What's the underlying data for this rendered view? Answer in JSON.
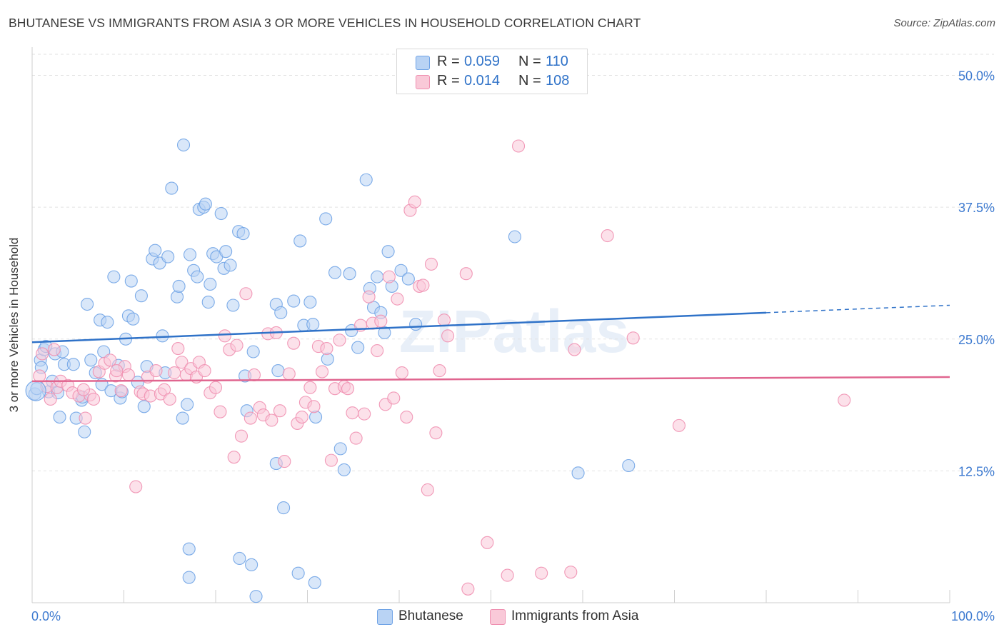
{
  "title": "BHUTANESE VS IMMIGRANTS FROM ASIA 3 OR MORE VEHICLES IN HOUSEHOLD CORRELATION CHART",
  "source": "Source: ZipAtlas.com",
  "watermark": "ZIPatlas",
  "legend": {
    "rows": [
      {
        "r_label": "R =",
        "r_value": "0.059",
        "n_label": "N =",
        "n_value": "110",
        "color": "#6fa3e6",
        "fill": "#b9d3f4"
      },
      {
        "r_label": "R =",
        "r_value": "0.014",
        "n_label": "N =",
        "n_value": "108",
        "color": "#ef8fb0",
        "fill": "#f9c9d8"
      }
    ]
  },
  "bottom_legend": [
    {
      "label": "Bhutanese",
      "color": "#6fa3e6",
      "fill": "#b9d3f4"
    },
    {
      "label": "Immigrants from Asia",
      "color": "#ef8fb0",
      "fill": "#f9c9d8"
    }
  ],
  "chart_data": {
    "type": "scatter",
    "title": "BHUTANESE VS IMMIGRANTS FROM ASIA 3 OR MORE VEHICLES IN HOUSEHOLD CORRELATION CHART",
    "xlabel": "",
    "ylabel": "3 or more Vehicles in Household",
    "xlim": [
      0,
      100
    ],
    "ylim": [
      0,
      52
    ],
    "x_tick_labels": [
      "0.0%",
      "100.0%"
    ],
    "y_ticks": [
      12.5,
      25.0,
      37.5,
      50.0
    ],
    "y_tick_labels": [
      "12.5%",
      "25.0%",
      "37.5%",
      "50.0%"
    ],
    "grid": true,
    "series": [
      {
        "name": "Bhutanese",
        "color": "#6fa3e6",
        "fill": "#b9d3f4",
        "trend": {
          "x0": 0,
          "y0": 24.7,
          "x1": 80,
          "y1": 27.5,
          "dashed_to_x": 100,
          "dashed_to_y": 28.2,
          "color": "#2f72c8"
        },
        "points": [
          [
            0.3,
            19.8
          ],
          [
            0.5,
            20.3
          ],
          [
            0.9,
            23.0
          ],
          [
            1.0,
            22.3
          ],
          [
            1.3,
            24.0
          ],
          [
            1.5,
            24.3
          ],
          [
            1.8,
            20.0
          ],
          [
            2.2,
            21.0
          ],
          [
            2.5,
            23.6
          ],
          [
            2.8,
            19.9
          ],
          [
            3.0,
            17.6
          ],
          [
            3.3,
            23.8
          ],
          [
            3.5,
            22.6
          ],
          [
            4.5,
            22.6
          ],
          [
            4.8,
            17.5
          ],
          [
            5.4,
            19.2
          ],
          [
            5.7,
            16.2
          ],
          [
            6.0,
            28.3
          ],
          [
            6.4,
            23.0
          ],
          [
            6.9,
            21.8
          ],
          [
            7.4,
            26.8
          ],
          [
            7.6,
            20.7
          ],
          [
            7.8,
            23.8
          ],
          [
            8.2,
            26.6
          ],
          [
            8.6,
            20.1
          ],
          [
            8.9,
            30.9
          ],
          [
            9.4,
            22.5
          ],
          [
            9.6,
            19.4
          ],
          [
            9.8,
            20.0
          ],
          [
            10.2,
            25.0
          ],
          [
            10.5,
            27.2
          ],
          [
            10.8,
            30.5
          ],
          [
            11.0,
            26.9
          ],
          [
            11.5,
            20.9
          ],
          [
            11.9,
            29.1
          ],
          [
            12.2,
            18.6
          ],
          [
            12.5,
            22.4
          ],
          [
            13.1,
            32.6
          ],
          [
            13.4,
            33.4
          ],
          [
            13.9,
            32.2
          ],
          [
            14.2,
            25.3
          ],
          [
            14.5,
            21.8
          ],
          [
            14.8,
            32.8
          ],
          [
            15.2,
            39.3
          ],
          [
            15.8,
            29.0
          ],
          [
            16.0,
            30.0
          ],
          [
            16.4,
            17.5
          ],
          [
            16.5,
            43.4
          ],
          [
            16.9,
            18.8
          ],
          [
            17.2,
            33.0
          ],
          [
            17.6,
            31.5
          ],
          [
            18.0,
            30.9
          ],
          [
            18.2,
            37.3
          ],
          [
            18.7,
            37.5
          ],
          [
            18.9,
            37.8
          ],
          [
            19.2,
            28.5
          ],
          [
            19.4,
            30.2
          ],
          [
            19.7,
            33.1
          ],
          [
            20.1,
            32.8
          ],
          [
            20.6,
            36.9
          ],
          [
            20.9,
            31.7
          ],
          [
            21.1,
            33.3
          ],
          [
            21.6,
            32.0
          ],
          [
            21.9,
            28.2
          ],
          [
            22.5,
            35.2
          ],
          [
            23.0,
            35.0
          ],
          [
            23.2,
            21.5
          ],
          [
            23.4,
            18.2
          ],
          [
            24.1,
            23.8
          ],
          [
            26.6,
            13.2
          ],
          [
            26.6,
            28.3
          ],
          [
            26.8,
            22.0
          ],
          [
            27.1,
            27.5
          ],
          [
            27.4,
            9.0
          ],
          [
            28.5,
            28.6
          ],
          [
            29.2,
            34.3
          ],
          [
            29.6,
            26.3
          ],
          [
            30.3,
            28.5
          ],
          [
            30.6,
            26.4
          ],
          [
            30.9,
            17.6
          ],
          [
            32.0,
            36.4
          ],
          [
            32.2,
            23.1
          ],
          [
            33.0,
            31.3
          ],
          [
            33.6,
            14.6
          ],
          [
            34.0,
            12.6
          ],
          [
            34.6,
            31.2
          ],
          [
            34.8,
            25.8
          ],
          [
            35.5,
            24.2
          ],
          [
            36.4,
            40.1
          ],
          [
            36.8,
            29.8
          ],
          [
            37.2,
            28.0
          ],
          [
            37.6,
            30.9
          ],
          [
            38.0,
            27.5
          ],
          [
            38.4,
            25.6
          ],
          [
            38.8,
            33.3
          ],
          [
            39.2,
            30.0
          ],
          [
            40.2,
            31.5
          ],
          [
            41.0,
            30.7
          ],
          [
            41.8,
            26.4
          ],
          [
            52.6,
            34.7
          ],
          [
            59.5,
            12.3
          ],
          [
            65.0,
            13.0
          ],
          [
            17.1,
            5.1
          ],
          [
            23.9,
            3.6
          ],
          [
            24.4,
            0.6
          ],
          [
            29.0,
            2.8
          ],
          [
            30.8,
            1.9
          ],
          [
            17.1,
            2.4
          ],
          [
            5.5,
            19.5
          ],
          [
            22.6,
            4.2
          ]
        ]
      },
      {
        "name": "Immigrants from Asia",
        "color": "#ef8fb0",
        "fill": "#f9c9d8",
        "trend": {
          "x0": 0,
          "y0": 21.0,
          "x1": 100,
          "y1": 21.4,
          "color": "#e0658f"
        },
        "points": [
          [
            0.8,
            21.5
          ],
          [
            1.1,
            23.6
          ],
          [
            1.6,
            20.5
          ],
          [
            2.0,
            19.3
          ],
          [
            2.7,
            20.4
          ],
          [
            3.1,
            21.0
          ],
          [
            3.9,
            20.6
          ],
          [
            4.4,
            19.9
          ],
          [
            5.1,
            19.6
          ],
          [
            5.8,
            17.5
          ],
          [
            6.3,
            19.7
          ],
          [
            6.7,
            19.3
          ],
          [
            7.3,
            21.9
          ],
          [
            7.9,
            22.7
          ],
          [
            8.5,
            23.0
          ],
          [
            9.1,
            21.5
          ],
          [
            9.7,
            20.1
          ],
          [
            10.1,
            22.4
          ],
          [
            10.5,
            21.6
          ],
          [
            11.3,
            11.0
          ],
          [
            11.8,
            20.0
          ],
          [
            12.1,
            19.8
          ],
          [
            12.6,
            21.4
          ],
          [
            12.9,
            19.6
          ],
          [
            13.5,
            22.0
          ],
          [
            14.0,
            19.8
          ],
          [
            14.4,
            20.2
          ],
          [
            15.0,
            19.3
          ],
          [
            15.5,
            21.8
          ],
          [
            15.9,
            24.1
          ],
          [
            16.3,
            22.8
          ],
          [
            16.8,
            21.6
          ],
          [
            17.3,
            22.2
          ],
          [
            17.9,
            21.4
          ],
          [
            18.2,
            22.8
          ],
          [
            18.8,
            22.0
          ],
          [
            19.4,
            19.9
          ],
          [
            20.0,
            20.4
          ],
          [
            20.5,
            18.1
          ],
          [
            21.0,
            25.3
          ],
          [
            21.5,
            24.0
          ],
          [
            22.0,
            13.8
          ],
          [
            22.3,
            24.4
          ],
          [
            22.8,
            15.8
          ],
          [
            23.3,
            29.3
          ],
          [
            23.8,
            17.5
          ],
          [
            24.2,
            21.6
          ],
          [
            24.8,
            18.5
          ],
          [
            25.2,
            17.8
          ],
          [
            25.7,
            25.5
          ],
          [
            26.1,
            17.3
          ],
          [
            26.6,
            25.6
          ],
          [
            27.0,
            18.2
          ],
          [
            27.5,
            13.4
          ],
          [
            28.0,
            21.7
          ],
          [
            28.5,
            24.6
          ],
          [
            28.9,
            17.0
          ],
          [
            29.4,
            17.6
          ],
          [
            29.8,
            19.0
          ],
          [
            30.3,
            20.4
          ],
          [
            30.7,
            18.6
          ],
          [
            31.2,
            24.3
          ],
          [
            31.6,
            21.9
          ],
          [
            32.1,
            24.1
          ],
          [
            32.6,
            13.5
          ],
          [
            33.0,
            20.3
          ],
          [
            33.5,
            24.9
          ],
          [
            34.0,
            20.5
          ],
          [
            34.4,
            20.3
          ],
          [
            34.9,
            18.0
          ],
          [
            35.3,
            15.6
          ],
          [
            35.8,
            26.3
          ],
          [
            36.2,
            17.9
          ],
          [
            36.7,
            29.0
          ],
          [
            37.1,
            26.5
          ],
          [
            37.6,
            23.9
          ],
          [
            38.0,
            26.7
          ],
          [
            38.5,
            18.8
          ],
          [
            38.9,
            30.9
          ],
          [
            39.4,
            19.4
          ],
          [
            39.8,
            28.8
          ],
          [
            40.3,
            21.8
          ],
          [
            40.8,
            17.6
          ],
          [
            41.2,
            37.2
          ],
          [
            41.7,
            38.0
          ],
          [
            42.2,
            30.0
          ],
          [
            42.6,
            30.1
          ],
          [
            43.1,
            10.7
          ],
          [
            43.5,
            32.1
          ],
          [
            44.0,
            16.1
          ],
          [
            44.4,
            22.0
          ],
          [
            44.9,
            26.8
          ],
          [
            45.3,
            25.3
          ],
          [
            47.3,
            31.2
          ],
          [
            47.5,
            1.3
          ],
          [
            49.6,
            5.7
          ],
          [
            51.8,
            2.6
          ],
          [
            53.0,
            43.3
          ],
          [
            55.5,
            2.8
          ],
          [
            58.7,
            2.9
          ],
          [
            59.1,
            24.0
          ],
          [
            62.7,
            34.8
          ],
          [
            65.5,
            25.1
          ],
          [
            70.5,
            16.8
          ],
          [
            88.5,
            19.2
          ],
          [
            5.6,
            20.2
          ],
          [
            9.2,
            22.0
          ],
          [
            2.4,
            24.0
          ]
        ]
      }
    ]
  }
}
